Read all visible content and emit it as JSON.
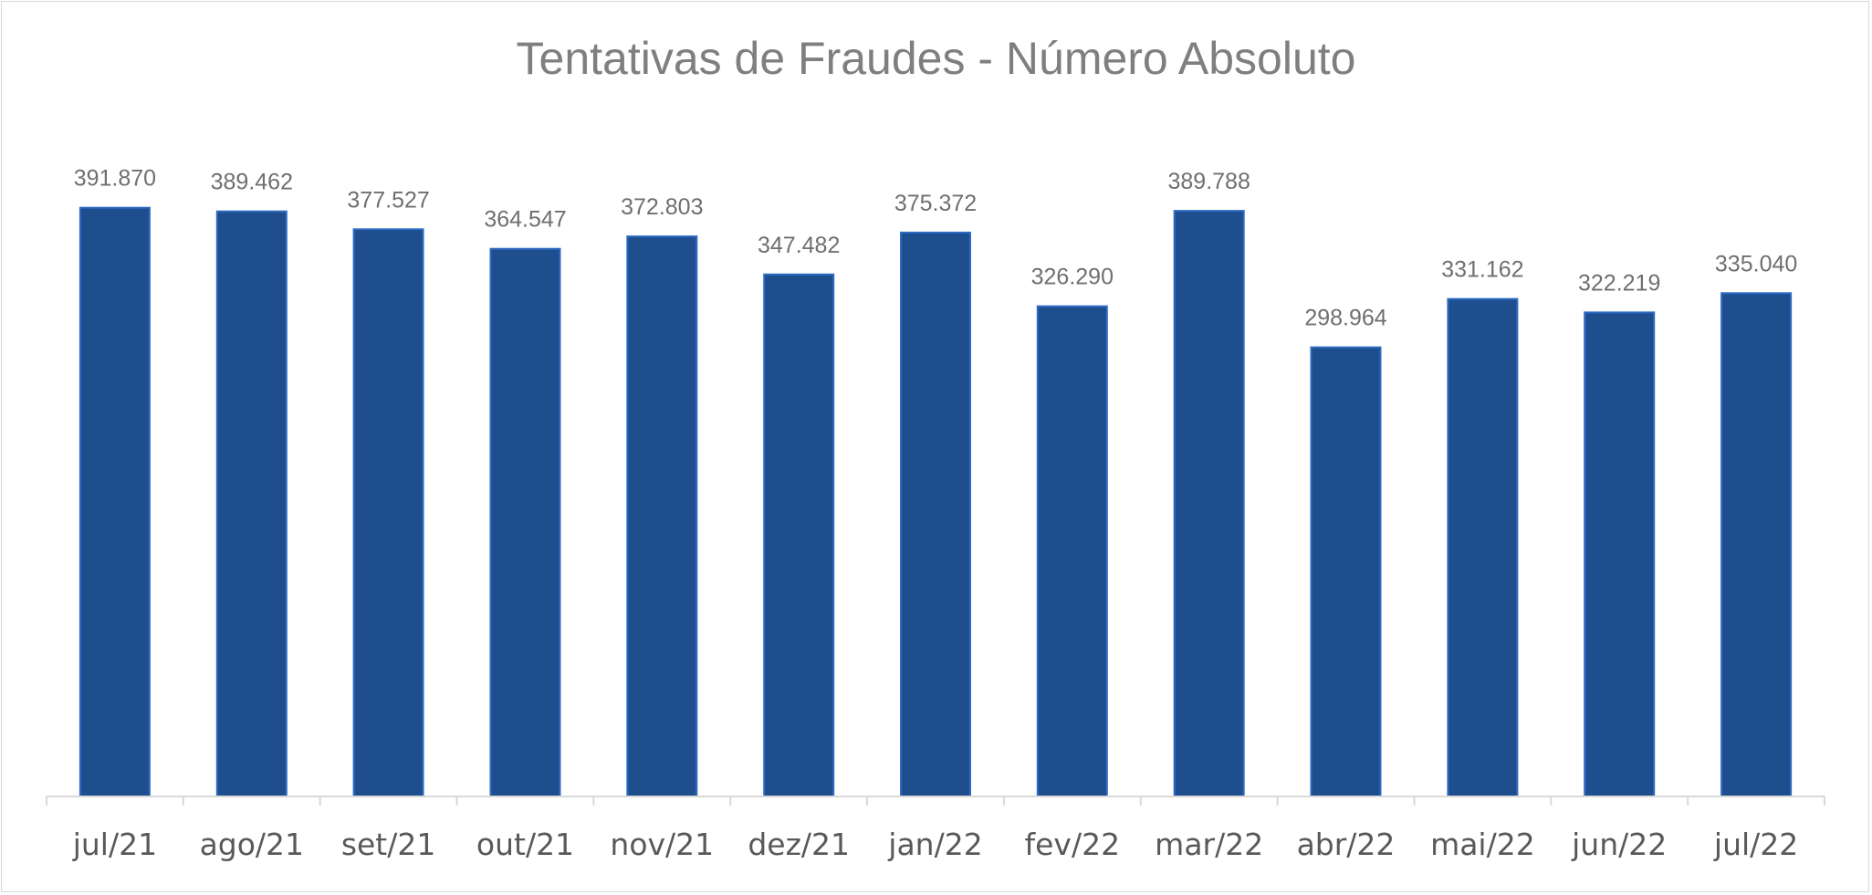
{
  "chart_data": {
    "type": "bar",
    "title": "Tentativas de Fraudes - Número Absoluto",
    "categories": [
      "jul/21",
      "ago/21",
      "set/21",
      "out/21",
      "nov/21",
      "dez/21",
      "jan/22",
      "fev/22",
      "mar/22",
      "abr/22",
      "mai/22",
      "jun/22",
      "jul/22"
    ],
    "values": [
      391870,
      389462,
      377527,
      364547,
      372803,
      347482,
      375372,
      326290,
      389788,
      298964,
      331162,
      322219,
      335040
    ],
    "data_labels": [
      "391.870",
      "389.462",
      "377.527",
      "364.547",
      "372.803",
      "347.482",
      "375.372",
      "326.290",
      "389.788",
      "298.964",
      "331.162",
      "322.219",
      "335.040"
    ],
    "ylim": [
      0,
      450000
    ],
    "grid": false,
    "legend": "none",
    "colors": {
      "bar_fill": "#1f4e8f",
      "bar_edge": "#2e6bc2",
      "axis": "#d9d9d9",
      "title": "#7f7f7f",
      "data_label": "#6f6f6f",
      "tick_label": "#595959"
    }
  }
}
